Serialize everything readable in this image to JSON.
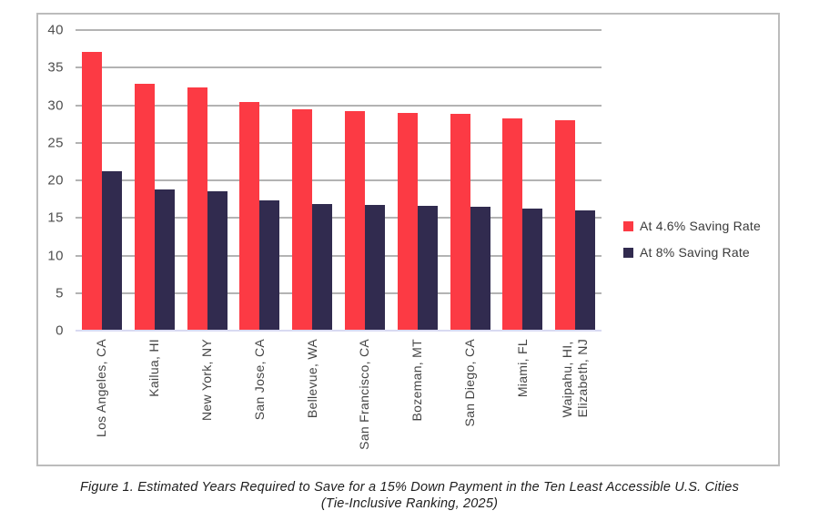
{
  "figure": {
    "caption_line1": "Figure 1. Estimated Years Required to Save for a 15% Down Payment in the Ten Least Accessible U.S. Cities",
    "caption_line2": "(Tie-Inclusive Ranking, 2025)"
  },
  "chart_data": {
    "type": "bar",
    "title": "",
    "xlabel": "",
    "ylabel": "",
    "categories": [
      "Los Angeles, CA",
      "Kailua, HI",
      "New York, NY",
      "San Jose, CA",
      "Bellevue, WA",
      "San Francisco, CA",
      "Bozeman, MT",
      "San Diego, CA",
      "Miami, FL",
      "Waipahu, HI,\nElizabeth, NJ"
    ],
    "series": [
      {
        "name": "At 4.6% Saving Rate",
        "color": "#FC3A44",
        "values": [
          37.1,
          32.8,
          32.4,
          30.4,
          29.5,
          29.2,
          29.0,
          28.8,
          28.3,
          28.0
        ]
      },
      {
        "name": "At 8% Saving Rate",
        "color": "#312B4F",
        "values": [
          21.2,
          18.8,
          18.5,
          17.3,
          16.9,
          16.7,
          16.6,
          16.5,
          16.2,
          16.0
        ]
      }
    ],
    "ylim": [
      0,
      40
    ],
    "y_ticks": [
      0,
      5,
      10,
      15,
      20,
      25,
      30,
      35,
      40
    ],
    "grid": true,
    "legend_position": "right"
  },
  "colors": {
    "grid": "#b3b3b3",
    "axis_baseline": "#d9daf2",
    "figure_border": "#bcbcbc",
    "tick_text": "#4f4f4f",
    "category_text": "#454545",
    "legend_text": "#3a3a3a",
    "caption_text": "#1e1e1e"
  }
}
